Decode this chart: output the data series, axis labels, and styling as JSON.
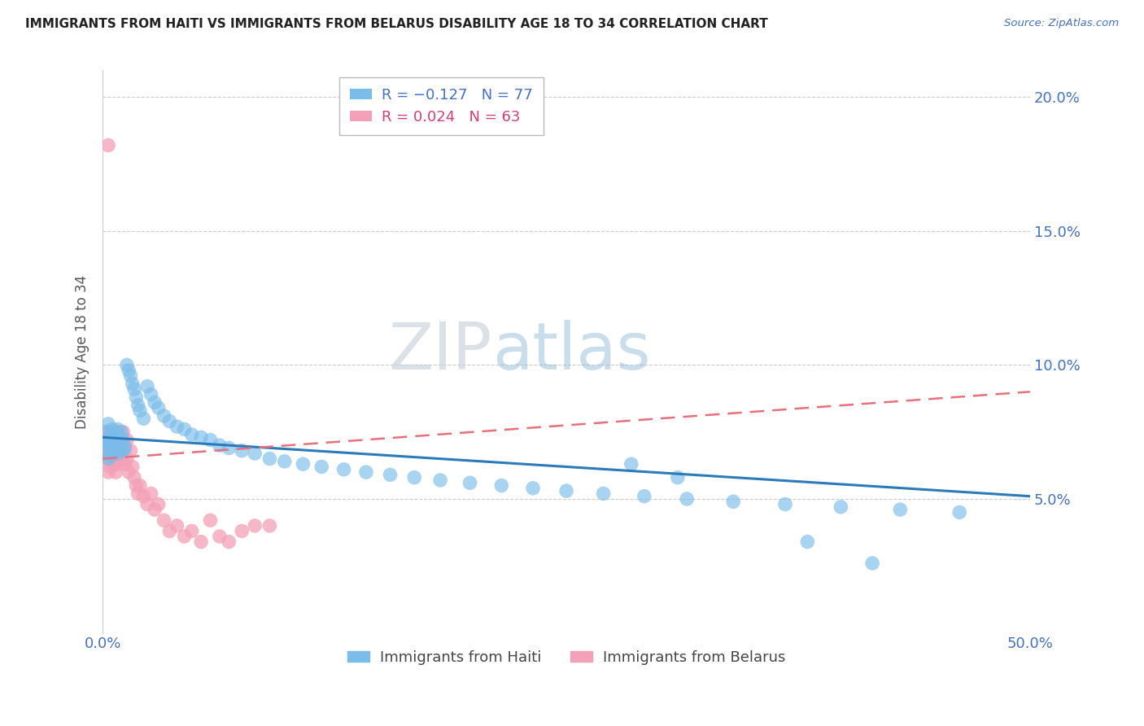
{
  "title": "IMMIGRANTS FROM HAITI VS IMMIGRANTS FROM BELARUS DISABILITY AGE 18 TO 34 CORRELATION CHART",
  "source": "Source: ZipAtlas.com",
  "ylabel": "Disability Age 18 to 34",
  "xlim": [
    0.0,
    0.5
  ],
  "ylim": [
    0.0,
    0.21
  ],
  "haiti_color": "#7abcea",
  "belarus_color": "#f4a0b8",
  "trendline_haiti_color": "#2b7bba",
  "trendline_belarus_color": "#e8707a",
  "watermark_color": "#d0dde8",
  "haiti_R": -0.127,
  "haiti_N": 77,
  "belarus_R": 0.024,
  "belarus_N": 63,
  "haiti_x": [
    0.001,
    0.002,
    0.002,
    0.003,
    0.003,
    0.003,
    0.004,
    0.004,
    0.004,
    0.005,
    0.005,
    0.005,
    0.005,
    0.006,
    0.006,
    0.006,
    0.007,
    0.007,
    0.008,
    0.008,
    0.008,
    0.009,
    0.009,
    0.01,
    0.01,
    0.011,
    0.011,
    0.012,
    0.013,
    0.014,
    0.015,
    0.016,
    0.017,
    0.018,
    0.019,
    0.02,
    0.022,
    0.024,
    0.026,
    0.028,
    0.03,
    0.033,
    0.036,
    0.04,
    0.044,
    0.048,
    0.053,
    0.058,
    0.063,
    0.068,
    0.075,
    0.082,
    0.09,
    0.098,
    0.108,
    0.118,
    0.13,
    0.142,
    0.155,
    0.168,
    0.182,
    0.198,
    0.215,
    0.232,
    0.25,
    0.27,
    0.292,
    0.315,
    0.34,
    0.368,
    0.398,
    0.43,
    0.462,
    0.38,
    0.415,
    0.285,
    0.31
  ],
  "haiti_y": [
    0.071,
    0.068,
    0.075,
    0.065,
    0.072,
    0.078,
    0.066,
    0.073,
    0.07,
    0.069,
    0.074,
    0.067,
    0.076,
    0.068,
    0.072,
    0.071,
    0.069,
    0.074,
    0.067,
    0.071,
    0.076,
    0.068,
    0.073,
    0.07,
    0.075,
    0.068,
    0.072,
    0.069,
    0.1,
    0.098,
    0.096,
    0.093,
    0.091,
    0.088,
    0.085,
    0.083,
    0.08,
    0.092,
    0.089,
    0.086,
    0.084,
    0.081,
    0.079,
    0.077,
    0.076,
    0.074,
    0.073,
    0.072,
    0.07,
    0.069,
    0.068,
    0.067,
    0.065,
    0.064,
    0.063,
    0.062,
    0.061,
    0.06,
    0.059,
    0.058,
    0.057,
    0.056,
    0.055,
    0.054,
    0.053,
    0.052,
    0.051,
    0.05,
    0.049,
    0.048,
    0.047,
    0.046,
    0.045,
    0.034,
    0.026,
    0.063,
    0.058
  ],
  "belarus_x": [
    0.001,
    0.001,
    0.002,
    0.002,
    0.003,
    0.003,
    0.003,
    0.003,
    0.004,
    0.004,
    0.004,
    0.004,
    0.005,
    0.005,
    0.005,
    0.006,
    0.006,
    0.006,
    0.006,
    0.007,
    0.007,
    0.007,
    0.007,
    0.008,
    0.008,
    0.008,
    0.009,
    0.009,
    0.009,
    0.01,
    0.01,
    0.01,
    0.011,
    0.011,
    0.012,
    0.012,
    0.013,
    0.013,
    0.014,
    0.015,
    0.016,
    0.017,
    0.018,
    0.019,
    0.02,
    0.022,
    0.024,
    0.026,
    0.028,
    0.03,
    0.033,
    0.036,
    0.04,
    0.044,
    0.048,
    0.053,
    0.058,
    0.063,
    0.068,
    0.075,
    0.082,
    0.09,
    0.003
  ],
  "belarus_y": [
    0.068,
    0.072,
    0.065,
    0.075,
    0.07,
    0.066,
    0.073,
    0.06,
    0.068,
    0.075,
    0.062,
    0.07,
    0.065,
    0.072,
    0.068,
    0.063,
    0.07,
    0.067,
    0.073,
    0.068,
    0.065,
    0.072,
    0.06,
    0.068,
    0.075,
    0.063,
    0.07,
    0.066,
    0.073,
    0.068,
    0.065,
    0.072,
    0.068,
    0.075,
    0.063,
    0.07,
    0.065,
    0.072,
    0.06,
    0.068,
    0.062,
    0.058,
    0.055,
    0.052,
    0.055,
    0.051,
    0.048,
    0.052,
    0.046,
    0.048,
    0.042,
    0.038,
    0.04,
    0.036,
    0.038,
    0.034,
    0.042,
    0.036,
    0.034,
    0.038,
    0.04,
    0.04,
    0.182
  ],
  "haiti_trend_x0": 0.0,
  "haiti_trend_y0": 0.073,
  "haiti_trend_x1": 0.5,
  "haiti_trend_y1": 0.051,
  "belarus_trend_x0": 0.0,
  "belarus_trend_y0": 0.065,
  "belarus_trend_x1": 0.5,
  "belarus_trend_y1": 0.09
}
